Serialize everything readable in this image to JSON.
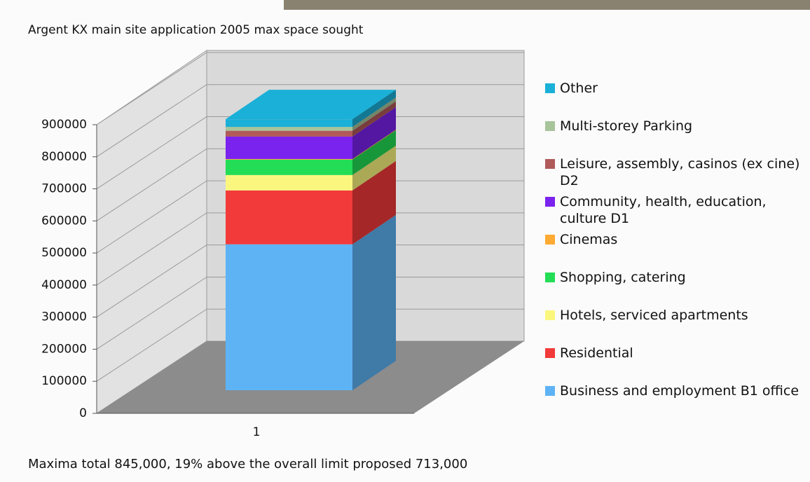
{
  "chart_data": {
    "type": "bar3d",
    "title": "Argent KX main site application 2005 max space sought",
    "caption": "Maxima total 845,000, 19% above the overall limit proposed 713,000",
    "categories": [
      "1"
    ],
    "series": [
      {
        "name": "Business and employment B1 office",
        "color": "#5eb3f5",
        "values": [
          455000
        ]
      },
      {
        "name": "Residential",
        "color": "#f23a3a",
        "values": [
          168000
        ]
      },
      {
        "name": "Hotels, serviced apartments",
        "color": "#fbf77e",
        "values": [
          48000
        ]
      },
      {
        "name": "Shopping, catering",
        "color": "#22dd55",
        "values": [
          48000
        ]
      },
      {
        "name": "Cinemas",
        "color": "#ffaa33",
        "values": [
          2000
        ]
      },
      {
        "name": "Community, health, education, culture D1",
        "color": "#7a22ee",
        "values": [
          70000
        ]
      },
      {
        "name": "Leisure, assembly, casinos (ex cine) D2",
        "color": "#b05a5a",
        "values": [
          18000
        ]
      },
      {
        "name": "Multi-storey Parking",
        "color": "#a8c49a",
        "values": [
          12000
        ]
      },
      {
        "name": "Other",
        "color": "#1ab0d8",
        "values": [
          24000
        ]
      }
    ],
    "ylim": [
      0,
      900000
    ],
    "yticks": [
      0,
      100000,
      200000,
      300000,
      400000,
      500000,
      600000,
      700000,
      800000,
      900000
    ],
    "grid": true
  }
}
